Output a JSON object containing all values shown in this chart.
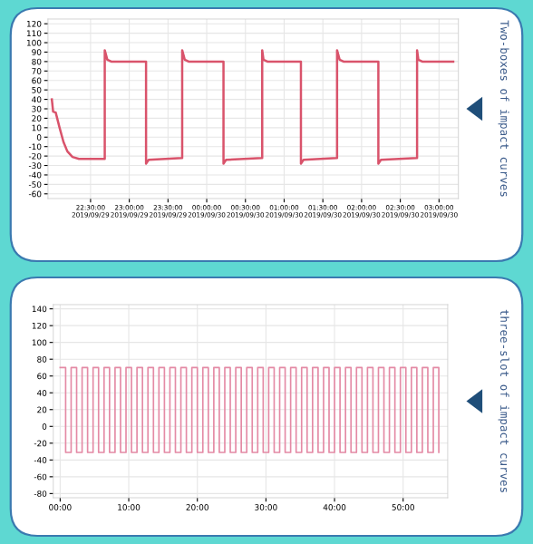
{
  "chart_data": [
    {
      "type": "line",
      "annotations": [
        "Two-boxes of impact curves"
      ],
      "series": [
        {
          "color": "#d9536b",
          "x": [
            "2019-09-29T22:00",
            "2019-09-29T22:01",
            "2019-09-29T22:03",
            "2019-09-29T22:06",
            "2019-09-29T22:09",
            "2019-09-29T22:12",
            "2019-09-29T22:16",
            "2019-09-29T22:21",
            "2019-09-29T22:41",
            "2019-09-29T22:41",
            "2019-09-29T22:43",
            "2019-09-29T22:46",
            "2019-09-29T23:13",
            "2019-09-29T23:13",
            "2019-09-29T23:15",
            "2019-09-29T23:41",
            "2019-09-29T23:41",
            "2019-09-29T23:43",
            "2019-09-29T23:46",
            "2019-09-30T00:13",
            "2019-09-30T00:13",
            "2019-09-30T00:15",
            "2019-09-30T00:43",
            "2019-09-30T00:43",
            "2019-09-30T00:44",
            "2019-09-30T00:47",
            "2019-09-30T01:13",
            "2019-09-30T01:13",
            "2019-09-30T01:15",
            "2019-09-30T01:41",
            "2019-09-30T01:41",
            "2019-09-30T01:43",
            "2019-09-30T01:46",
            "2019-09-30T02:13",
            "2019-09-30T02:13",
            "2019-09-30T02:15",
            "2019-09-30T02:43",
            "2019-09-30T02:43",
            "2019-09-30T02:44",
            "2019-09-30T02:47",
            "2019-09-30T03:11"
          ],
          "values": [
            40,
            27,
            26,
            10,
            -5,
            -15,
            -21,
            -23,
            -23,
            92,
            82,
            80,
            80,
            -28,
            -24,
            -22,
            92,
            82,
            80,
            80,
            -28,
            -24,
            -22,
            92,
            82,
            80,
            80,
            -28,
            -24,
            -22,
            92,
            82,
            80,
            80,
            -28,
            -24,
            -22,
            92,
            82,
            80,
            80
          ]
        }
      ],
      "xlim": [
        "2019-09-29T21:57",
        "2019-09-30T03:15"
      ],
      "xticks": [
        {
          "value": "2019-09-29T22:30",
          "label": "22:30:00\n2019/09/29"
        },
        {
          "value": "2019-09-29T23:00",
          "label": "23:00:00\n2019/09/29"
        },
        {
          "value": "2019-09-29T23:30",
          "label": "23:30:00\n2019/09/29"
        },
        {
          "value": "2019-09-30T00:00",
          "label": "00:00:00\n2019/09/30"
        },
        {
          "value": "2019-09-30T00:30",
          "label": "00:30:00\n2019/09/30"
        },
        {
          "value": "2019-09-30T01:00",
          "label": "01:00:00\n2019/09/30"
        },
        {
          "value": "2019-09-30T01:30",
          "label": "01:30:00\n2019/09/30"
        },
        {
          "value": "2019-09-30T02:00",
          "label": "02:00:00\n2019/09/30"
        },
        {
          "value": "2019-09-30T02:30",
          "label": "02:30:00\n2019/09/30"
        },
        {
          "value": "2019-09-30T03:00",
          "label": "03:00:00\n2019/09/30"
        }
      ],
      "ylim": [
        -65,
        125
      ],
      "yticks": [
        -60,
        -50,
        -40,
        -30,
        -20,
        -10,
        0,
        10,
        20,
        30,
        40,
        50,
        60,
        70,
        80,
        90,
        100,
        110,
        120
      ],
      "grid": true,
      "legend": false
    },
    {
      "type": "step",
      "annotations": [
        "three-slot of impact curves"
      ],
      "series": [
        {
          "color": "#e48aa5",
          "x": [
            0,
            0.8,
            1.6,
            2.4,
            3.2,
            4.0,
            4.8,
            5.6,
            6.4,
            7.2,
            8.0,
            8.8,
            9.6,
            10.4,
            11.2,
            12.0,
            12.8,
            13.6,
            14.4,
            15.2,
            16.0,
            16.8,
            17.6,
            18.4,
            19.2,
            20.0,
            20.8,
            21.6,
            22.4,
            23.2,
            24.0,
            24.8,
            25.6,
            26.4,
            27.2,
            28.0,
            28.8,
            29.6,
            30.4,
            31.2,
            32.0,
            32.8,
            33.6,
            34.4,
            35.2,
            36.0,
            36.8,
            37.6,
            38.4,
            39.2,
            40.0,
            40.8,
            41.6,
            42.4,
            43.2,
            44.0,
            44.8,
            45.6,
            46.4,
            47.2,
            48.0,
            48.8,
            49.6,
            50.4,
            51.2,
            52.0,
            52.8,
            53.6,
            54.4,
            55.2
          ],
          "values": [
            70,
            -31,
            70,
            -31,
            70,
            -31,
            70,
            -31,
            70,
            -31,
            70,
            -31,
            70,
            -31,
            70,
            -31,
            70,
            -31,
            70,
            -31,
            70,
            -31,
            70,
            -31,
            70,
            -31,
            70,
            -31,
            70,
            -31,
            70,
            -31,
            70,
            -31,
            70,
            -31,
            70,
            -31,
            70,
            -31,
            70,
            -31,
            70,
            -31,
            70,
            -31,
            70,
            -31,
            70,
            -31,
            70,
            -31,
            70,
            -31,
            70,
            -31,
            70,
            -31,
            70,
            -31,
            70,
            -31,
            70,
            -31,
            70,
            -31,
            70,
            -31,
            70,
            -31
          ]
        }
      ],
      "xlim": [
        -1,
        56.5
      ],
      "xticks": [
        {
          "value": 0,
          "label": "00:00"
        },
        {
          "value": 10,
          "label": "10:00"
        },
        {
          "value": 20,
          "label": "20:00"
        },
        {
          "value": 30,
          "label": "30:00"
        },
        {
          "value": 40,
          "label": "40:00"
        },
        {
          "value": 50,
          "label": "50:00"
        }
      ],
      "ylim": [
        -85,
        145
      ],
      "yticks": [
        -80,
        -60,
        -40,
        -20,
        0,
        20,
        40,
        60,
        80,
        100,
        120,
        140
      ],
      "grid": true,
      "legend": false
    }
  ]
}
